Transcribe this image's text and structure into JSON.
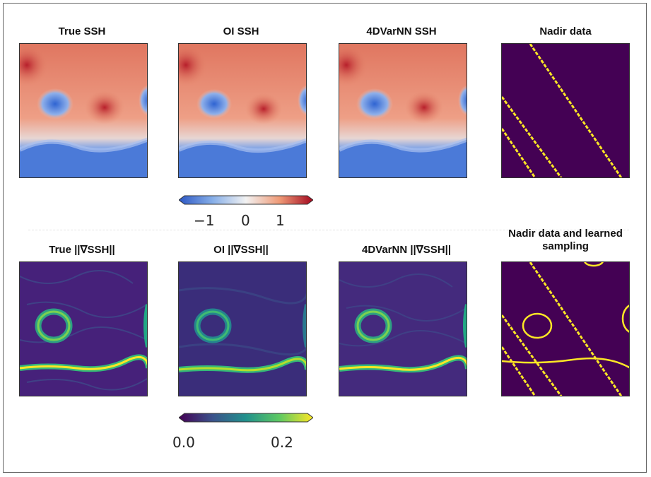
{
  "figure": {
    "row1_titles": [
      "True SSH",
      "OI SSH",
      "4DVarNN SSH",
      "Nadir data"
    ],
    "row2_titles": [
      "True ||∇SSH||",
      "OI ||∇SSH||",
      "4DVarNN ||∇SSH||",
      "Nadir data and learned sampling"
    ],
    "ssh_colorbar": {
      "colormap": "RdBu_r",
      "min": -1.8,
      "max": 1.8,
      "ticks": [
        "−1",
        "0",
        "1"
      ]
    },
    "grad_colorbar": {
      "colormap": "viridis",
      "min": 0.0,
      "max": 0.25,
      "ticks": [
        "0.0",
        "0.2"
      ]
    },
    "colors": {
      "ssh_high": "#d03a35",
      "ssh_low": "#3f6fd6",
      "viridis_low": "#440154",
      "viridis_high": "#fde725",
      "mask_bg": "#440154",
      "track": "#fde725"
    }
  }
}
